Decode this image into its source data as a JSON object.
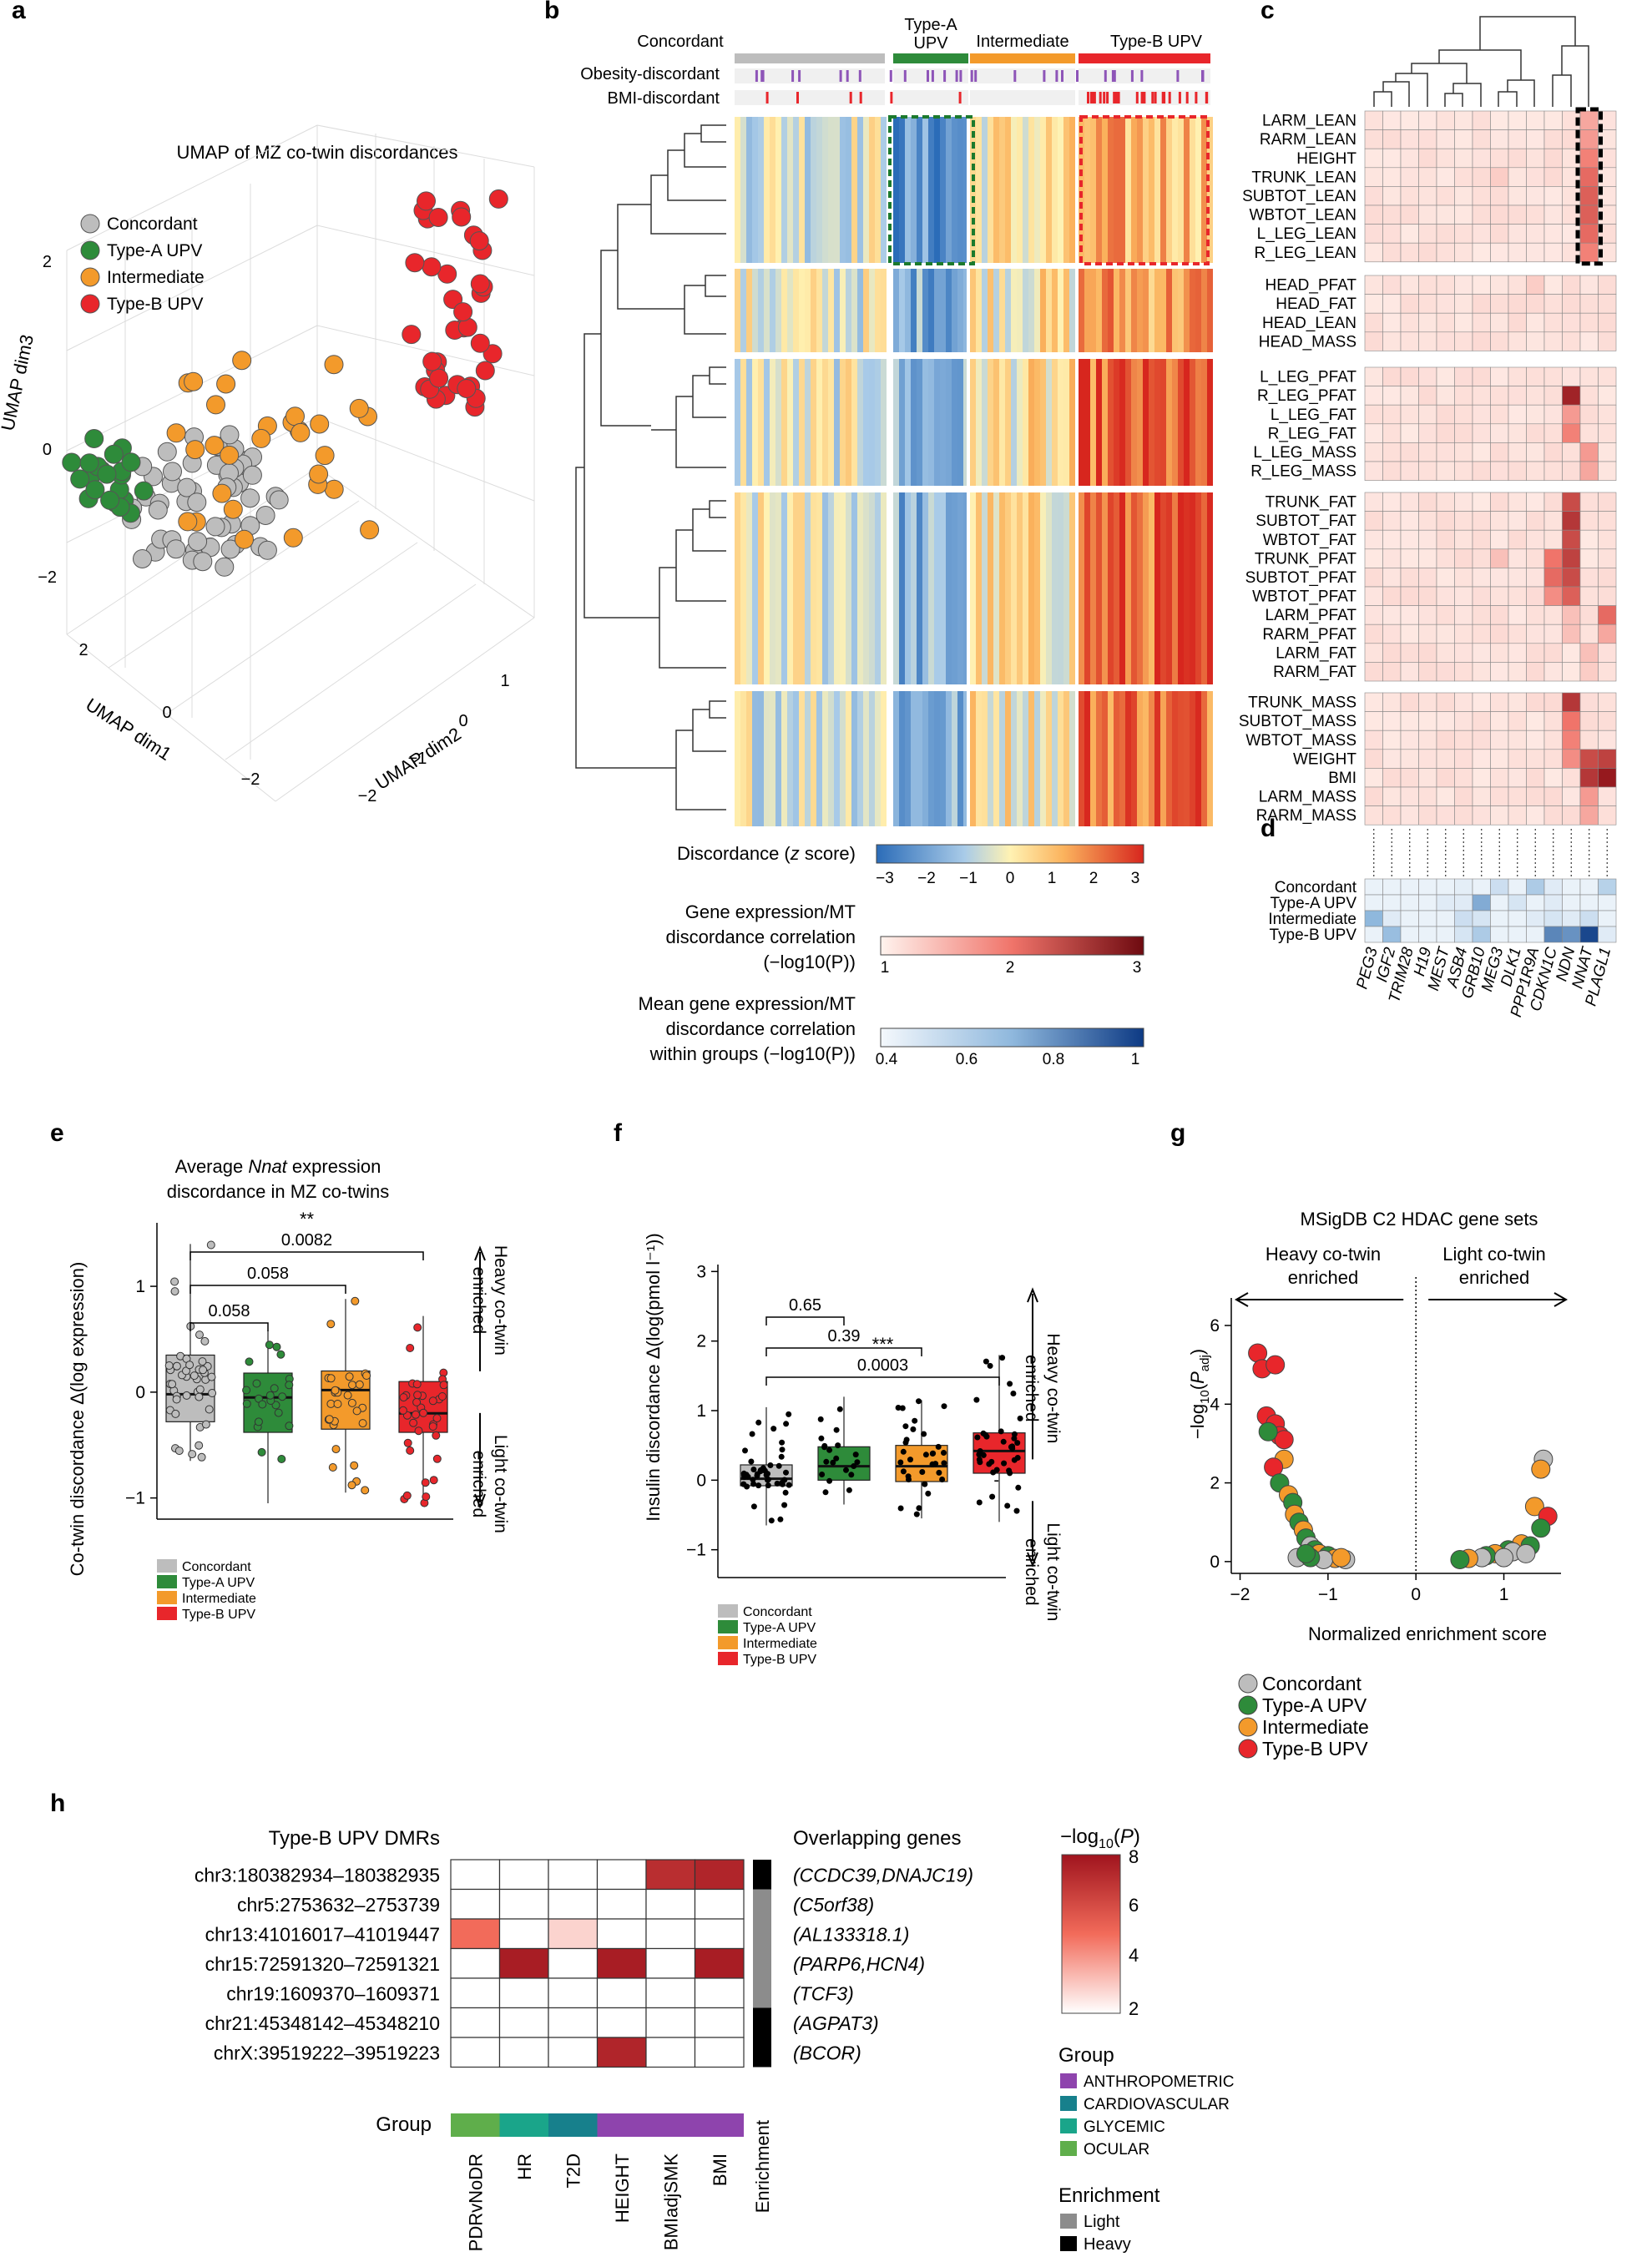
{
  "panels": {
    "a": {
      "letter": "a",
      "title": "UMAP of MZ co-twin discordances",
      "legend": [
        {
          "label": "Concordant",
          "color": "#bdbdbd"
        },
        {
          "label": "Type-A UPV",
          "color": "#2e8b3a"
        },
        {
          "label": "Intermediate",
          "color": "#f39a2b"
        },
        {
          "label": "Type-B UPV",
          "color": "#e8262b"
        }
      ],
      "axis_labels": {
        "dim1": "UMAP dim1",
        "dim2": "UMAP dim2",
        "dim3": "UMAP dim3"
      },
      "ticks_dim3": [
        "2",
        "0",
        "−2"
      ],
      "ticks_dim1": [
        "2",
        "0",
        "−2"
      ],
      "ticks_dim2": [
        "−2",
        "−1",
        "0",
        "1"
      ]
    },
    "b": {
      "letter": "b",
      "groups": [
        "Concordant",
        "Type-A\nUPV",
        "Intermediate",
        "Type-B UPV"
      ],
      "group_top": [
        "Concordant",
        "Type-A",
        "Intermediate",
        "Type-B UPV"
      ],
      "group_sub": [
        "",
        "UPV",
        "",
        ""
      ],
      "group_colors": [
        "#bdbdbd",
        "#2e8b3a",
        "#f39a2b",
        "#e8262b"
      ],
      "track_labels": [
        "Obesity-discordant",
        "BMI-discordant"
      ],
      "colorbar_title": "Discordance (z score)",
      "colorbar_ticks": [
        "−3",
        "−2",
        "−1",
        "0",
        "1",
        "2",
        "3"
      ],
      "gene_corr_title": [
        "Gene expression/MT",
        "discordance correlation",
        "(−log10(P))"
      ],
      "gene_corr_ticks": [
        "1",
        "2",
        "3"
      ],
      "mean_corr_title": [
        "Mean gene expression/MT",
        "discordance correlation",
        "within groups (−log10(P))"
      ],
      "mean_corr_ticks": [
        "0.4",
        "0.6",
        "0.8",
        "1"
      ]
    },
    "c": {
      "letter": "c",
      "trait_blocks": [
        [
          "LARM_LEAN",
          "RARM_LEAN",
          "HEIGHT",
          "TRUNK_LEAN",
          "SUBTOT_LEAN",
          "WBTOT_LEAN",
          "L_LEG_LEAN",
          "R_LEG_LEAN"
        ],
        [
          "HEAD_PFAT",
          "HEAD_FAT",
          "HEAD_LEAN",
          "HEAD_MASS"
        ],
        [
          "L_LEG_PFAT",
          "R_LEG_PFAT",
          "L_LEG_FAT",
          "R_LEG_FAT",
          "L_LEG_MASS",
          "R_LEG_MASS"
        ],
        [
          "TRUNK_FAT",
          "SUBTOT_FAT",
          "WBTOT_FAT",
          "TRUNK_PFAT",
          "SUBTOT_PFAT",
          "WBTOT_PFAT",
          "LARM_PFAT",
          "RARM_PFAT",
          "LARM_FAT",
          "RARM_FAT"
        ],
        [
          "TRUNK_MASS",
          "SUBTOT_MASS",
          "WBTOT_MASS",
          "WEIGHT",
          "BMI",
          "LARM_MASS",
          "RARM_MASS"
        ]
      ],
      "genes": [
        "PEG3",
        "IGF2",
        "TRIM28",
        "H19",
        "MEST",
        "ASB4",
        "GRB10",
        "MEG3",
        "DLK1",
        "PPP1R9A",
        "CDKN1C",
        "NDN",
        "NNAT",
        "PLAGL1"
      ]
    },
    "d": {
      "letter": "d",
      "rows": [
        "Concordant",
        "Type-A UPV",
        "Intermediate",
        "Type-B UPV"
      ]
    },
    "e": {
      "letter": "e",
      "title_pre": "Average ",
      "title_gene": "Nnat",
      "title_post": " expression",
      "title_line2": "discordance in MZ co-twins",
      "ylabel": "Co-twin discordance Δ(log expression)",
      "yticks": [
        "1",
        "0",
        "−1"
      ],
      "brackets": [
        {
          "stars": "",
          "p": "0.058"
        },
        {
          "stars": "",
          "p": "0.058"
        },
        {
          "stars": "**",
          "p": "0.0082"
        }
      ],
      "side_top": [
        "Heavy co-twin",
        "enriched"
      ],
      "side_bottom": [
        "Light co-twin",
        "enriched"
      ],
      "legend": [
        "Concordant",
        "Type-A UPV",
        "Intermediate",
        "Type-B UPV"
      ],
      "chart_data": {
        "type": "box",
        "categories": [
          "Concordant",
          "Type-A UPV",
          "Intermediate",
          "Type-B UPV"
        ],
        "median": [
          -0.02,
          -0.05,
          0.02,
          -0.2
        ],
        "q1": [
          -0.28,
          -0.38,
          -0.35,
          -0.38
        ],
        "q3": [
          0.35,
          0.18,
          0.2,
          0.1
        ],
        "whisker_low": [
          -0.65,
          -1.05,
          -0.95,
          -1.05
        ],
        "whisker_high": [
          1.4,
          0.58,
          0.88,
          0.72
        ],
        "ylim": [
          -1.2,
          1.6
        ]
      }
    },
    "f": {
      "letter": "f",
      "ylabel": "Insulin discordance Δ(log(pmol l⁻¹))",
      "yticks": [
        "3",
        "2",
        "1",
        "0",
        "−1"
      ],
      "brackets": [
        {
          "stars": "",
          "p": "0.65"
        },
        {
          "stars": "",
          "p": "0.39"
        },
        {
          "stars": "***",
          "p": "0.0003"
        }
      ],
      "side_top": [
        "Heavy co-twin",
        "enriched"
      ],
      "side_bottom": [
        "Light co-twin",
        "enriched"
      ],
      "legend": [
        "Concordant",
        "Type-A UPV",
        "Intermediate",
        "Type-B UPV"
      ],
      "chart_data": {
        "type": "box",
        "categories": [
          "Concordant",
          "Type-A UPV",
          "Intermediate",
          "Type-B UPV"
        ],
        "median": [
          0.02,
          0.2,
          0.2,
          0.42
        ],
        "q1": [
          -0.08,
          0.0,
          -0.02,
          0.1
        ],
        "q3": [
          0.22,
          0.48,
          0.5,
          0.68
        ],
        "whisker_low": [
          -0.65,
          -0.35,
          -0.55,
          -0.6
        ],
        "whisker_high": [
          1.05,
          1.2,
          1.15,
          1.8
        ],
        "ylim": [
          -1.4,
          3.1
        ]
      }
    },
    "g": {
      "letter": "g",
      "title": "MSigDB C2 HDAC gene sets",
      "heavy": [
        "Heavy co-twin",
        "enriched"
      ],
      "light": [
        "Light co-twin",
        "enriched"
      ],
      "ylabel": "−log10(Padj)",
      "xlabel": "Normalized enrichment score",
      "xticks": [
        "−2",
        "−1",
        "0",
        "1"
      ],
      "yticks": [
        "6",
        "4",
        "2",
        "0"
      ],
      "legend": [
        {
          "label": "Concordant",
          "color": "#bdbdbd"
        },
        {
          "label": "Type-A UPV",
          "color": "#2e8b3a"
        },
        {
          "label": "Intermediate",
          "color": "#f39a2b"
        },
        {
          "label": "Type-B UPV",
          "color": "#e8262b"
        }
      ]
    },
    "h": {
      "letter": "h",
      "header_left": "Type-B UPV DMRs",
      "header_right": "Overlapping genes",
      "rows": [
        {
          "dmr": "chr3:180382934–180382935",
          "genes": "(CCDC39,DNAJC19)"
        },
        {
          "dmr": "chr5:2753632–2753739",
          "genes": "(C5orf38)"
        },
        {
          "dmr": "chr13:41016017–41019447",
          "genes": "(AL133318.1)"
        },
        {
          "dmr": "chr15:72591320–72591321",
          "genes": "(PARP6,HCN4)"
        },
        {
          "dmr": "chr19:1609370–1609371",
          "genes": "(TCF3)"
        },
        {
          "dmr": "chr21:45348142–45348210",
          "genes": "(AGPAT3)"
        },
        {
          "dmr": "chrX:39519222–39519223",
          "genes": "(BCOR)"
        }
      ],
      "columns": [
        "PDRvNoDR",
        "HR",
        "T2D",
        "HEIGHT",
        "BMIadjSMK",
        "BMI"
      ],
      "group_label": "Group",
      "enrichment_label": "Enrichment",
      "colorbar_title": "−log10(P)",
      "colorbar_ticks": [
        "8",
        "6",
        "4",
        "2"
      ],
      "group_legend_title": "Group",
      "group_legend": [
        {
          "label": "ANTHROPOMETRIC",
          "color": "#8e44ad"
        },
        {
          "label": "CARDIOVASCULAR",
          "color": "#17808c"
        },
        {
          "label": "GLYCEMIC",
          "color": "#1aa58a"
        },
        {
          "label": "OCULAR",
          "color": "#5fae4b"
        }
      ],
      "enrich_legend_title": "Enrichment",
      "enrich_legend": [
        {
          "label": "Light",
          "color": "#8c8c8c"
        },
        {
          "label": "Heavy",
          "color": "#000000"
        }
      ]
    }
  }
}
